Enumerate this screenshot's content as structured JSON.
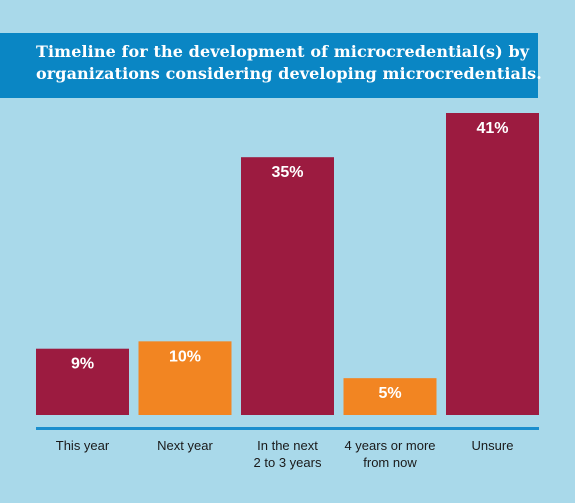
{
  "chart_data": {
    "type": "bar",
    "title_lines": [
      "Timeline for the development of microcredential(s) by",
      "organizations considering developing microcredentials."
    ],
    "categories": [
      [
        "This year"
      ],
      [
        "Next year"
      ],
      [
        "In the next",
        "2 to 3 years"
      ],
      [
        "4 years or more",
        "from now"
      ],
      [
        "Unsure"
      ]
    ],
    "values": [
      9,
      10,
      35,
      5,
      41
    ],
    "value_labels": [
      "9%",
      "10%",
      "35%",
      "5%",
      "41%"
    ],
    "bar_colors": [
      "#9c1b40",
      "#f28522",
      "#9c1b40",
      "#f28522",
      "#9c1b40"
    ],
    "axis_color": "#1a8fce",
    "background_color": "#a9d9ea",
    "title_band_color": "#0a86c4",
    "ylim": [
      0,
      41
    ],
    "grid": false,
    "legend": "none"
  }
}
